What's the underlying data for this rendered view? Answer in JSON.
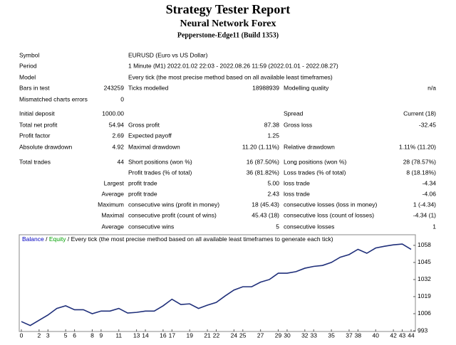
{
  "header": {
    "title": "Strategy Tester Report",
    "subtitle": "Neural Network Forex",
    "server": "Pepperstone-Edge11 (Build 1353)"
  },
  "table": {
    "rows": [
      {
        "label1": "Symbol",
        "wide": "EURUSD (Euro vs US Dollar)"
      },
      {
        "label1": "Period",
        "wide": "1 Minute (M1) 2022.01.02 22:03 - 2022.08.26 11:59 (2022.01.01 - 2022.08.27)"
      },
      {
        "label1": "Model",
        "wide": "Every tick (the most precise method based on all available least timeframes)"
      },
      {
        "label1": "Bars in test",
        "value1": "243259",
        "label2": "Ticks modelled",
        "value2": "18988939",
        "label3": "Modelling quality",
        "value3": "n/a"
      },
      {
        "label1": "Mismatched charts errors",
        "value1": "0"
      },
      {
        "label1": "Initial deposit",
        "value1": "1000.00",
        "label3": "Spread",
        "value3": "Current (18)"
      },
      {
        "label1": "Total net profit",
        "value1": "54.94",
        "label2": "Gross profit",
        "value2": "87.38",
        "label3": "Gross loss",
        "value3": "-32.45"
      },
      {
        "label1": "Profit factor",
        "value1": "2.69",
        "label2": "Expected payoff",
        "value2": "1.25"
      },
      {
        "label1": "Absolute drawdown",
        "value1": "4.92",
        "label2": "Maximal drawdown",
        "value2": "11.20 (1.11%)",
        "label3": "Relative drawdown",
        "value3": "1.11% (11.20)"
      },
      {
        "label1": "Total trades",
        "value1": "44",
        "label2": "Short positions (won %)",
        "value2": "16 (87.50%)",
        "label3": "Long positions (won %)",
        "value3": "28 (78.57%)"
      },
      {
        "label2": "Profit trades (% of total)",
        "value2": "36 (81.82%)",
        "label3": "Loss trades (% of total)",
        "value3": "8 (18.18%)"
      },
      {
        "lead": "Largest",
        "label2": "profit trade",
        "value2": "5.00",
        "label3": "loss trade",
        "value3": "-4.34"
      },
      {
        "lead": "Average",
        "label2": "profit trade",
        "value2": "2.43",
        "label3": "loss trade",
        "value3": "-4.06"
      },
      {
        "lead": "Maximum",
        "label2": "consecutive wins (profit in money)",
        "value2": "18 (45.43)",
        "label3": "consecutive losses (loss in money)",
        "value3": "1 (-4.34)"
      },
      {
        "lead": "Maximal",
        "label2": "consecutive profit (count of wins)",
        "value2": "45.43 (18)",
        "label3": "consecutive loss (count of losses)",
        "value3": "-4.34 (1)"
      },
      {
        "lead": "Average",
        "label2": "consecutive wins",
        "value2": "5",
        "label3": "consecutive losses",
        "value3": "1"
      }
    ]
  },
  "chart_data": {
    "type": "line",
    "legend": {
      "balance": "Balance",
      "sep": "/",
      "equity": "Equity",
      "rest": "/ Every tick (the most precise method based on all available least timeframes to generate each tick)",
      "balance_color": "#0000c0",
      "equity_color": "#00a000"
    },
    "x": [
      0,
      1,
      2,
      3,
      4,
      5,
      6,
      7,
      8,
      9,
      10,
      11,
      12,
      13,
      14,
      15,
      16,
      17,
      18,
      19,
      20,
      21,
      22,
      23,
      24,
      25,
      26,
      27,
      28,
      29,
      30,
      31,
      32,
      33,
      34,
      35,
      36,
      37,
      38,
      39,
      40,
      41,
      42,
      43,
      44
    ],
    "series": [
      {
        "name": "Balance",
        "color": "#1f2f7a",
        "values": [
          1000,
          997,
          1001,
          1005,
          1010,
          1012,
          1009,
          1009,
          1006,
          1008,
          1008,
          1010,
          1006.5,
          1007,
          1008,
          1008,
          1012,
          1017,
          1013,
          1013.5,
          1010,
          1012.5,
          1014.6,
          1019.5,
          1024,
          1026.5,
          1026.5,
          1030,
          1032,
          1036.8,
          1036.8,
          1038,
          1040.6,
          1042,
          1042.7,
          1045,
          1049,
          1051,
          1055,
          1052,
          1056,
          1057.3,
          1058.4,
          1059,
          1054.94
        ]
      }
    ],
    "xlim": [
      0,
      44
    ],
    "xticks": [
      0,
      2,
      3,
      5,
      6,
      8,
      9,
      11,
      13,
      14,
      16,
      17,
      19,
      21,
      22,
      24,
      25,
      27,
      29,
      30,
      32,
      33,
      35,
      37,
      38,
      40,
      42,
      43,
      44
    ],
    "ylim": [
      993,
      1065
    ],
    "yticks": [
      993,
      1006,
      1019,
      1032,
      1045,
      1058
    ]
  }
}
